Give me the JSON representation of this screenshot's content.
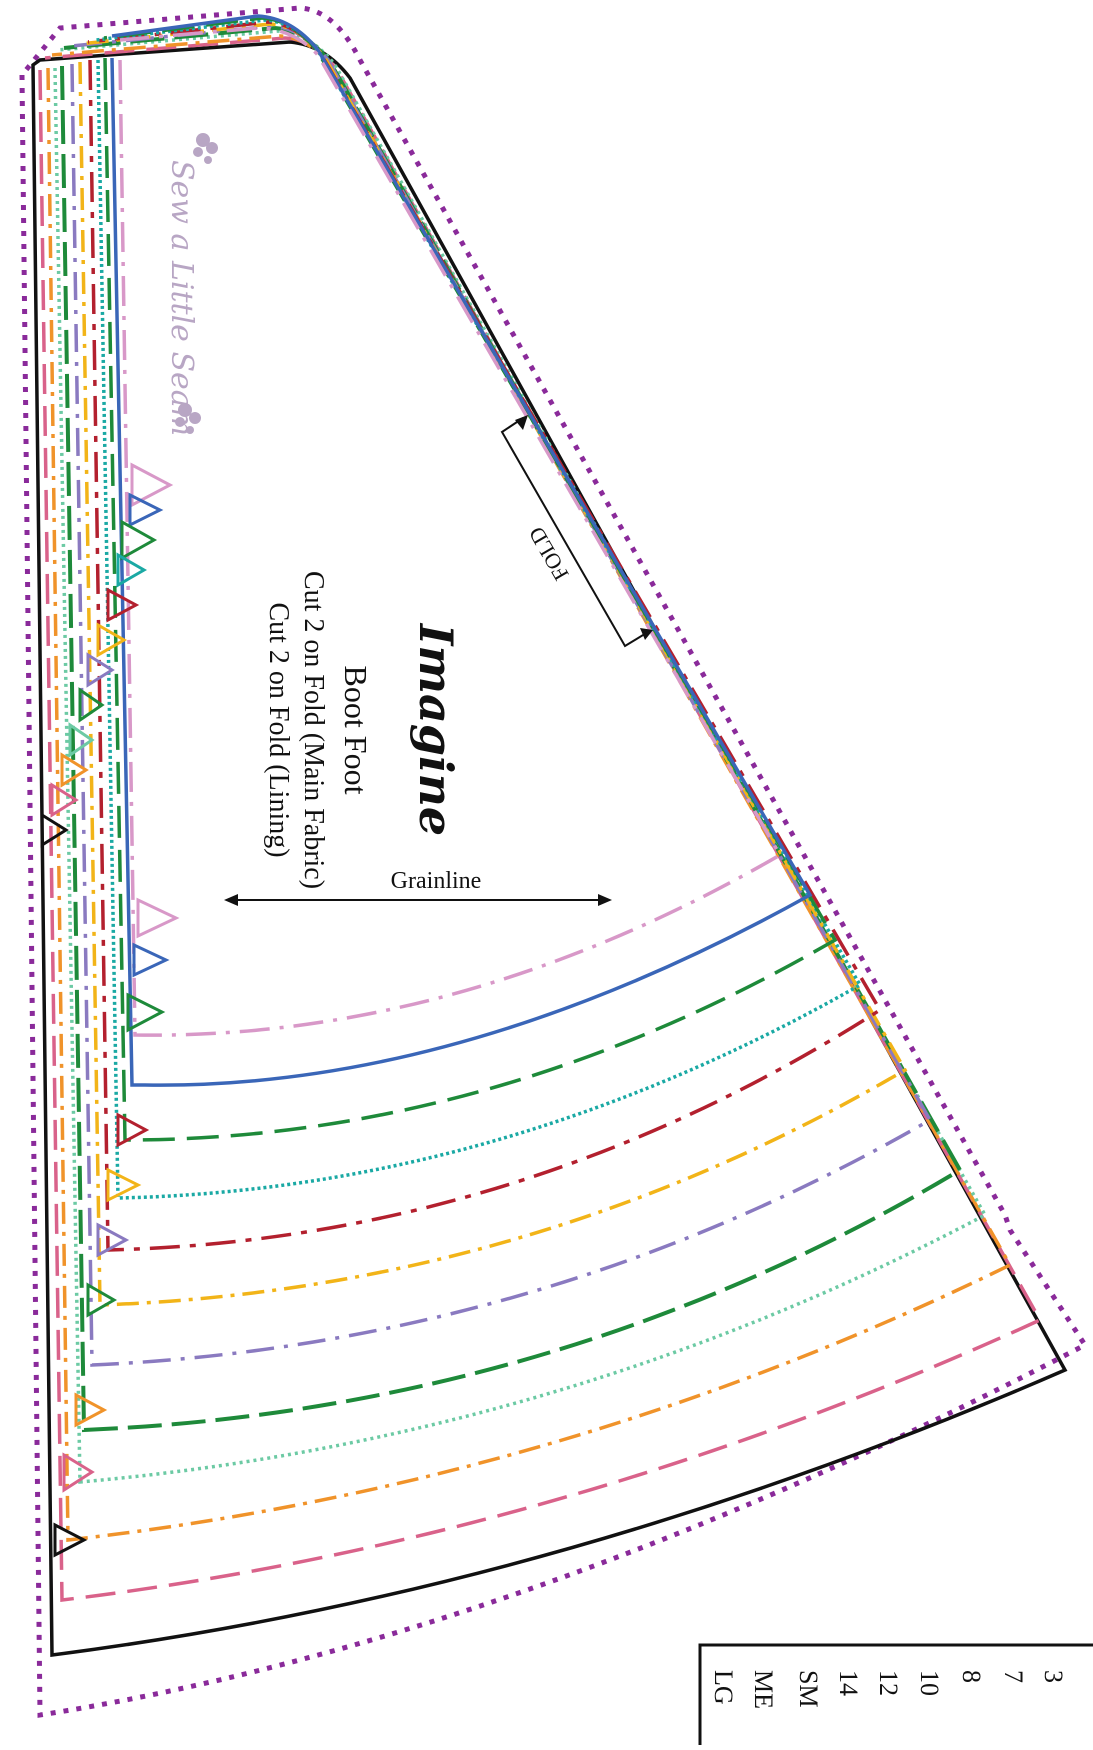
{
  "pattern": {
    "title": "Imagine",
    "piece_name": "Boot Foot",
    "cut_main": "Cut 2 on Fold (Main Fabric)",
    "cut_lining": "Cut 2 on Fold (Lining)",
    "grainline_label": "Grainline",
    "fold_label": "FOLD",
    "watermark": "Sew a Little Seam"
  },
  "size_legend_partial": [
    "3",
    "7",
    "8",
    "10",
    "12",
    "14",
    "SM",
    "ME",
    "LG"
  ],
  "colors": {
    "purple_dotted": "#8a2a9a",
    "black": "#111111",
    "pink": "#d9628a",
    "orange": "#f0932a",
    "mint_dotted": "#6ccaa4",
    "green": "#1e8a3a",
    "lavender": "#8a7ac0",
    "yellow": "#f2b418",
    "red": "#b3202e",
    "teal": "#1aa9a4",
    "blue": "#3a66b8",
    "light_pink": "#d898c8",
    "watermark": "#b8a6c4"
  }
}
